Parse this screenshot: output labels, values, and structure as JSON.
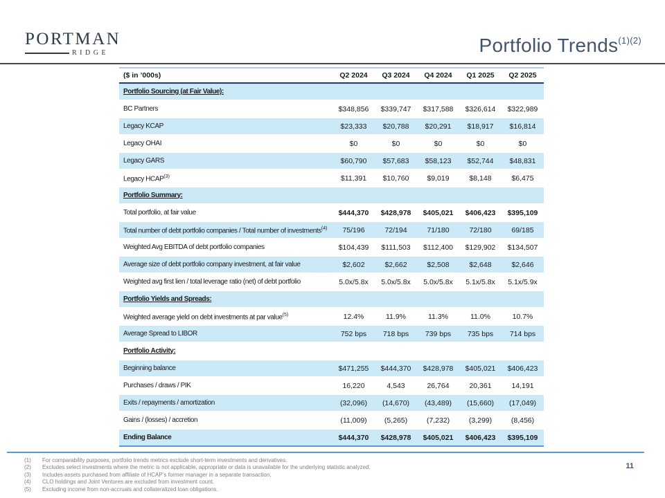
{
  "slide": {
    "logo": {
      "primary": "PORTMAN",
      "secondary": "RIDGE"
    },
    "title": {
      "text": "Portfolio Trends",
      "superscript": "(1)(2)"
    },
    "page_number": "11"
  },
  "table": {
    "unit_label": "($ in ’000s)",
    "columns": [
      "Q2 2024",
      "Q3 2024",
      "Q4 2024",
      "Q1 2025",
      "Q2 2025"
    ],
    "rows": [
      {
        "type": "section",
        "label": "Portfolio Sourcing (at Fair Value):"
      },
      {
        "type": "data",
        "label": "BC Partners",
        "values": [
          "$348,856",
          "$339,747",
          "$317,588",
          "$326,614",
          "$322,989"
        ]
      },
      {
        "type": "data",
        "label": "Legacy KCAP",
        "values": [
          "$23,333",
          "$20,788",
          "$20,291",
          "$18,917",
          "$16,814"
        ]
      },
      {
        "type": "data",
        "label": "Legacy OHAI",
        "values": [
          "$0",
          "$0",
          "$0",
          "$0",
          "$0"
        ]
      },
      {
        "type": "data",
        "label": "Legacy GARS",
        "values": [
          "$60,790",
          "$57,683",
          "$58,123",
          "$52,744",
          "$48,831"
        ]
      },
      {
        "type": "data",
        "label": "Legacy HCAP",
        "sup": "(3)",
        "values": [
          "$11,391",
          "$10,760",
          "$9,019",
          "$8,148",
          "$6,475"
        ]
      },
      {
        "type": "section",
        "label": "Portfolio Summary:"
      },
      {
        "type": "data",
        "label": "Total portfolio, at fair value",
        "bold_values": true,
        "values": [
          "$444,370",
          "$428,978",
          "$405,021",
          "$406,423",
          "$395,109"
        ]
      },
      {
        "type": "data",
        "label": "Total number of debt portfolio companies / Total number of investments",
        "sup": "(4)",
        "wrap": true,
        "values": [
          "75/196",
          "72/194",
          "71/180",
          "72/180",
          "69/185"
        ]
      },
      {
        "type": "data",
        "label": "Weighted Avg EBITDA of debt portfolio companies",
        "values": [
          "$104,439",
          "$111,503",
          "$112,400",
          "$129,902",
          "$134,507"
        ]
      },
      {
        "type": "data",
        "label": "Average size of debt portfolio company investment, at fair value",
        "values": [
          "$2,602",
          "$2,662",
          "$2,508",
          "$2,648",
          "$2,646"
        ]
      },
      {
        "type": "data",
        "label": "Weighted avg first lien / total leverage ratio (net) of debt portfolio",
        "values": [
          "5.0x/5.8x",
          "5.0x/5.8x",
          "5.0x/5.8x",
          "5.1x/5.8x",
          "5.1x/5.9x"
        ]
      },
      {
        "type": "section",
        "label": "Portfolio Yields and Spreads:"
      },
      {
        "type": "data",
        "label": "Weighted average yield on debt investments at par value",
        "sup": "(5)",
        "values": [
          "12.4%",
          "11.9%",
          "11.3%",
          "11.0%",
          "10.7%"
        ]
      },
      {
        "type": "data",
        "label": "Average Spread to LIBOR",
        "values": [
          "752 bps",
          "718 bps",
          "739 bps",
          "735 bps",
          "714 bps"
        ]
      },
      {
        "type": "section",
        "label": "Portfolio Activity:"
      },
      {
        "type": "data",
        "label": "Beginning balance",
        "values": [
          "$471,255",
          "$444,370",
          "$428,978",
          "$405,021",
          "$406,423"
        ]
      },
      {
        "type": "data",
        "label": "Purchases / draws / PIK",
        "values": [
          "16,220",
          "4,543",
          "26,764",
          "20,361",
          "14,191"
        ]
      },
      {
        "type": "data",
        "label": "Exits / repayments / amortization",
        "values": [
          "(32,096)",
          "(14,670)",
          "(43,489)",
          "(15,660)",
          "(17,049)"
        ]
      },
      {
        "type": "data",
        "label": "Gains / (losses) / accretion",
        "values": [
          "(11,009)",
          "(5,265)",
          "(7,232)",
          "(3,299)",
          "(8,456)"
        ]
      },
      {
        "type": "data",
        "label": "Ending Balance",
        "bold": true,
        "values": [
          "$444,370",
          "$428,978",
          "$405,021",
          "$406,423",
          "$395,109"
        ]
      }
    ]
  },
  "footnotes": {
    "items": [
      {
        "marker": "(1)",
        "text": "For comparability purposes, portfolio trends metrics exclude short-term investments and derivatives."
      },
      {
        "marker": "(2)",
        "text": "Excludes select investments where the metric is not applicable, appropriate or data is unavailable for the underlying statistic analyzed."
      },
      {
        "marker": "(3)",
        "text": "Includes assets purchased from affiliate of HCAP’s former manager in a separate transaction."
      },
      {
        "marker": "(4)",
        "text": "CLO holdings and Joint Ventures are excluded from investment count."
      },
      {
        "marker": "(5)",
        "text": "Excluding income from non-accruals and collateralized loan obligations."
      }
    ]
  },
  "colors": {
    "row_highlight": "#cce9f7",
    "accent_blue": "#5b9bd5",
    "navy_rule": "#1e3c6e",
    "title_slate": "#44546a",
    "logo_navy": "#2d3a4a",
    "footnote_gray": "#7f7f7f"
  }
}
